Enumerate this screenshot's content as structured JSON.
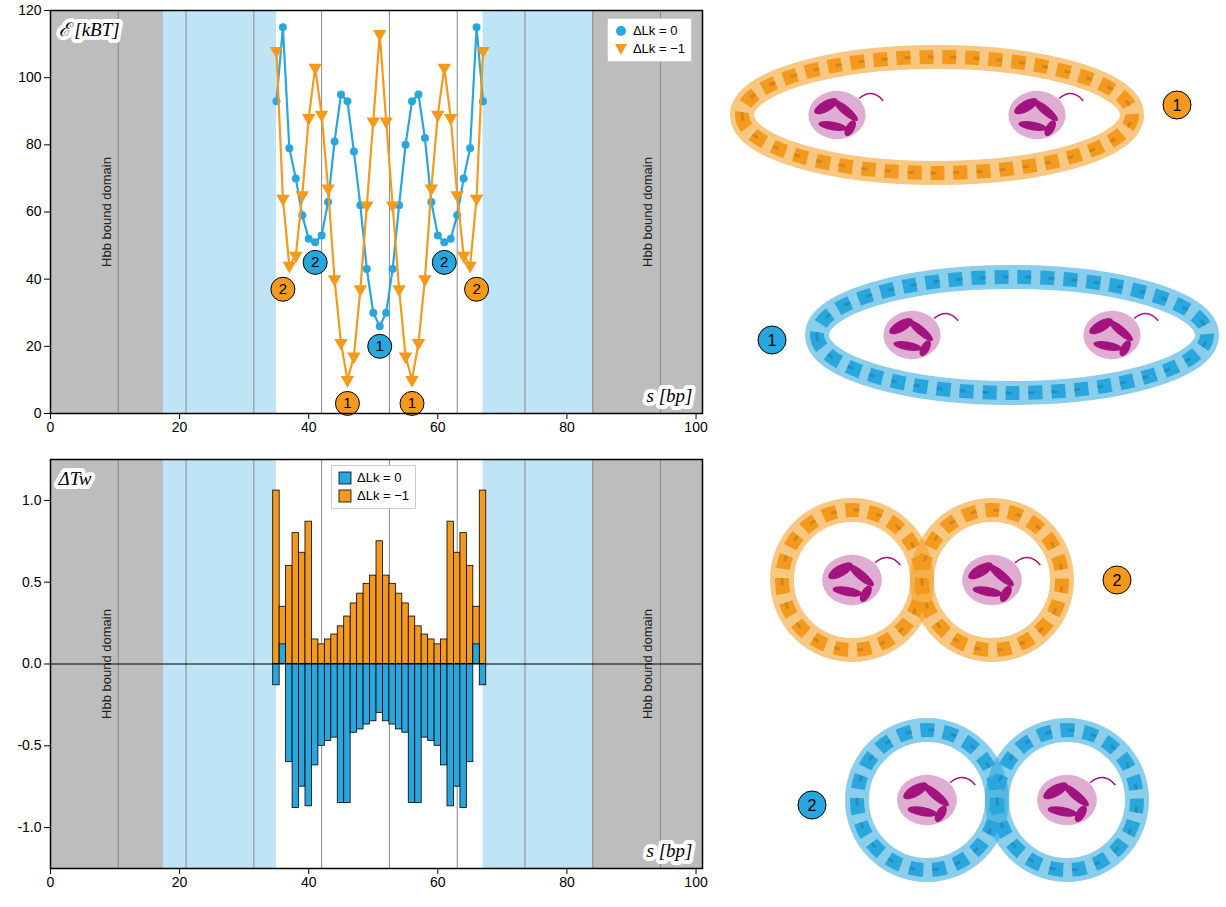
{
  "chart_data": [
    {
      "type": "line",
      "y_label": "ℰ [kBT]",
      "x_label": "s [bp]",
      "xlim": [
        0,
        101
      ],
      "xticks": [
        0,
        20,
        40,
        60,
        80,
        100
      ],
      "ylim": [
        0,
        120
      ],
      "yticks": [
        0,
        20,
        40,
        60,
        80,
        100,
        120
      ],
      "legend": "top-right",
      "regions": [
        {
          "start": 0,
          "end": 17.5,
          "color": "#bdbdbd",
          "label": "Hbb bound domain"
        },
        {
          "start": 17.5,
          "end": 35,
          "color": "#bfe4f5"
        },
        {
          "start": 67,
          "end": 84,
          "color": "#bfe4f5"
        },
        {
          "start": 84,
          "end": 101,
          "color": "#bdbdbd",
          "label": "Hbb bound domain"
        }
      ],
      "vlines": [
        10.5,
        21,
        31.5,
        42,
        52.5,
        63,
        73.5,
        84,
        94.5
      ],
      "x": [
        35,
        36,
        37,
        38,
        39,
        40,
        41,
        42,
        43,
        44,
        45,
        46,
        47,
        48,
        49,
        50,
        51,
        52,
        53,
        54,
        55,
        56,
        57,
        58,
        59,
        60,
        61,
        62,
        63,
        64,
        65,
        66,
        67
      ],
      "series": [
        {
          "name": "ΔLk = 0",
          "color": "#29a6dd",
          "marker": "circle",
          "values": [
            93,
            115,
            79,
            70,
            59,
            52,
            51,
            53,
            63,
            81,
            95,
            93,
            78,
            62,
            43,
            30,
            26,
            30,
            43,
            62,
            80,
            93,
            95,
            82,
            63,
            53,
            51,
            52,
            59,
            70,
            79,
            115,
            93
          ]
        },
        {
          "name": "ΔLk = −1",
          "color": "#f39a1e",
          "marker": "triangle-down",
          "values": [
            108,
            64,
            44,
            47,
            65,
            88,
            103,
            89,
            67,
            40,
            21,
            10,
            17,
            37,
            62,
            87,
            113,
            87,
            62,
            37,
            17,
            10,
            21,
            40,
            67,
            89,
            103,
            88,
            65,
            47,
            44,
            64,
            108
          ]
        }
      ],
      "annotations": [
        {
          "text": "1",
          "x": 46,
          "y": 3,
          "series": "ΔLk = −1"
        },
        {
          "text": "1",
          "x": 56,
          "y": 3,
          "series": "ΔLk = −1"
        },
        {
          "text": "2",
          "x": 36,
          "y": 37,
          "series": "ΔLk = −1"
        },
        {
          "text": "2",
          "x": 66,
          "y": 37,
          "series": "ΔLk = −1"
        },
        {
          "text": "1",
          "x": 51,
          "y": 20,
          "series": "ΔLk = 0"
        },
        {
          "text": "2",
          "x": 41,
          "y": 45,
          "series": "ΔLk = 0"
        },
        {
          "text": "2",
          "x": 61,
          "y": 45,
          "series": "ΔLk = 0"
        }
      ]
    },
    {
      "type": "bar",
      "y_label": "ΔTw",
      "x_label": "s [bp]",
      "xlim": [
        0,
        101
      ],
      "xticks": [
        0,
        20,
        40,
        60,
        80,
        100
      ],
      "ylim": [
        -1.25,
        1.25
      ],
      "yticks": [
        {
          "value": -1,
          "label": "-1.0"
        },
        -0.5,
        {
          "value": 0,
          "label": "0.0"
        },
        0.5,
        {
          "value": 1,
          "label": "1.0"
        }
      ],
      "legend": "top",
      "regions": [
        {
          "start": 0,
          "end": 17.5,
          "color": "#bdbdbd",
          "label": "Hbb bound domain"
        },
        {
          "start": 17.5,
          "end": 35,
          "color": "#bfe4f5"
        },
        {
          "start": 67,
          "end": 84,
          "color": "#bfe4f5"
        },
        {
          "start": 84,
          "end": 101,
          "color": "#bdbdbd",
          "label": "Hbb bound domain"
        }
      ],
      "vlines": [
        10.5,
        21,
        31.5,
        42,
        52.5,
        63,
        73.5,
        84,
        94.5
      ],
      "x": [
        35,
        36,
        37,
        38,
        39,
        40,
        41,
        42,
        43,
        44,
        45,
        46,
        47,
        48,
        49,
        50,
        51,
        52,
        53,
        54,
        55,
        56,
        57,
        58,
        59,
        60,
        61,
        62,
        63,
        64,
        65,
        66,
        67
      ],
      "series": [
        {
          "name": "ΔLk = 0",
          "color": "#29a6dd",
          "marker": "square",
          "values": [
            -0.13,
            0.12,
            -0.6,
            -0.88,
            -0.75,
            -0.87,
            -0.62,
            -0.5,
            -0.47,
            -0.45,
            -0.85,
            -0.85,
            -0.42,
            -0.4,
            -0.37,
            -0.35,
            -0.3,
            -0.35,
            -0.37,
            -0.4,
            -0.42,
            -0.85,
            -0.85,
            -0.45,
            -0.47,
            -0.5,
            -0.62,
            -0.87,
            -0.75,
            -0.88,
            -0.6,
            0.12,
            -0.13
          ]
        },
        {
          "name": "ΔLk = −1",
          "color": "#f39a1e",
          "marker": "square",
          "values": [
            1.06,
            0.35,
            0.6,
            0.8,
            0.68,
            0.87,
            0.15,
            0.12,
            0.15,
            0.18,
            0.23,
            0.29,
            0.37,
            0.43,
            0.49,
            0.54,
            0.75,
            0.54,
            0.49,
            0.43,
            0.37,
            0.29,
            0.23,
            0.18,
            0.15,
            0.12,
            0.15,
            0.87,
            0.68,
            0.8,
            0.6,
            0.35,
            1.06
          ]
        }
      ]
    }
  ],
  "structures": [
    {
      "label": "1",
      "series": "ΔLk = −1"
    },
    {
      "label": "1",
      "series": "ΔLk = 0"
    },
    {
      "label": "2",
      "series": "ΔLk = −1"
    },
    {
      "label": "2",
      "series": "ΔLk = 0"
    }
  ]
}
